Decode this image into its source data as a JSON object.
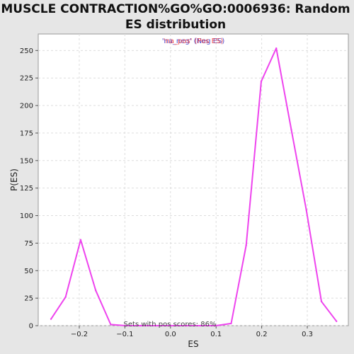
{
  "chart_data": {
    "type": "line",
    "title_line1": "MUSCLE CONTRACTION%GO%GO:0006936: Random",
    "title_line2": "ES distribution",
    "xlabel": "ES",
    "ylabel": "P(ES)",
    "xlim": [
      -0.29,
      0.39
    ],
    "ylim": [
      0,
      265
    ],
    "xticks": [
      -0.2,
      -0.1,
      0.0,
      0.1,
      0.2,
      0.3
    ],
    "xtick_labels": [
      "−0.2",
      "−0.1",
      "0.0",
      "0.1",
      "0.2",
      "0.3"
    ],
    "yticks": [
      0,
      25,
      50,
      75,
      100,
      125,
      150,
      175,
      200,
      225,
      250
    ],
    "ytick_labels": [
      "0",
      "25",
      "50",
      "75",
      "100",
      "125",
      "150",
      "175",
      "200",
      "225",
      "250"
    ],
    "grid": true,
    "legend": {
      "placement": "top-center",
      "neg_text": "'na_neg' (Neg ES)",
      "pos_text": "'na_pos' (Pos ES)",
      "neg_color": "#3333cc",
      "pos_color": "#ee3333"
    },
    "annotation": "Sets with pos scores: 86%",
    "series": [
      {
        "color": "#ee44ee",
        "x": [
          -0.262,
          -0.23,
          -0.197,
          -0.164,
          -0.131,
          -0.098,
          -0.065,
          -0.032,
          0.001,
          0.034,
          0.067,
          0.1,
          0.133,
          0.166,
          0.199,
          0.232,
          0.265,
          0.298,
          0.331,
          0.364
        ],
        "y": [
          6,
          26,
          78,
          32,
          1,
          0,
          0,
          0,
          0,
          0,
          0,
          0,
          2,
          73,
          222,
          252,
          178,
          105,
          22,
          4
        ]
      }
    ]
  }
}
